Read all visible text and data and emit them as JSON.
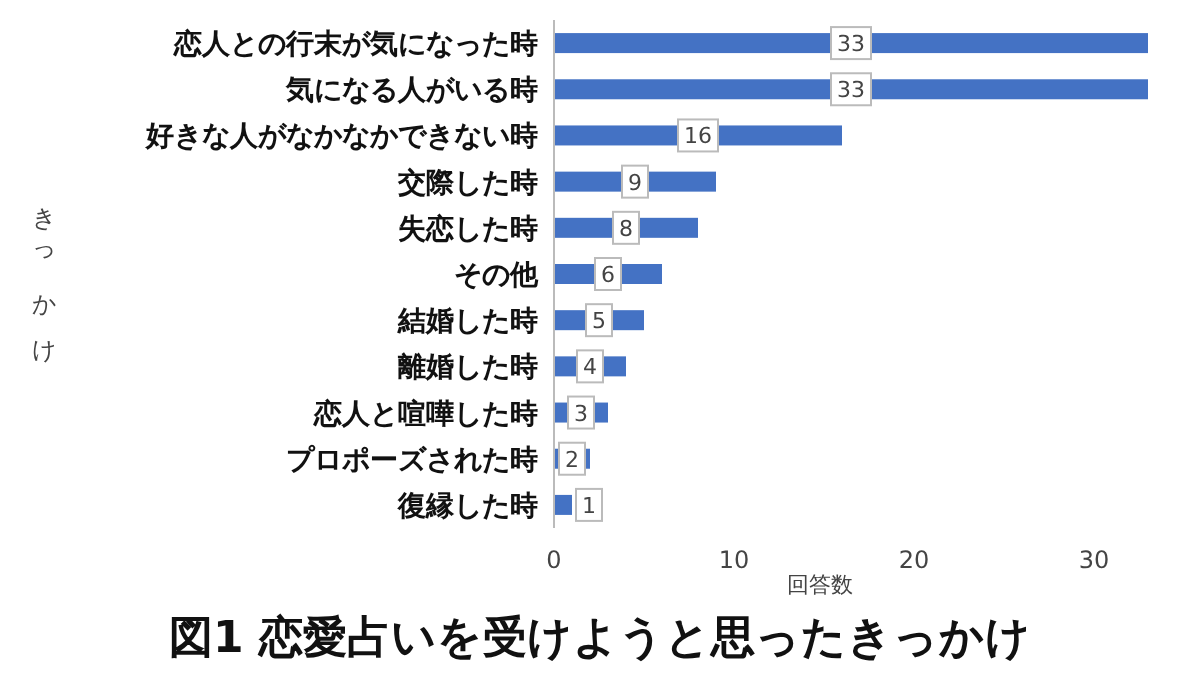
{
  "chart_data": {
    "type": "bar",
    "orientation": "horizontal",
    "title": "図1 恋愛占いを受けようと思ったきっかけ",
    "xlabel": "回答数",
    "ylabel": "きっかけ",
    "categories": [
      "恋人との行末が気になった時",
      "気になる人がいる時",
      "好きな人がなかなかできない時",
      "交際した時",
      "失恋した時",
      "その他",
      "結婚した時",
      "離婚した時",
      "恋人と喧嘩した時",
      "プロポーズされた時",
      "復縁した時"
    ],
    "values": [
      33,
      33,
      16,
      9,
      8,
      6,
      5,
      4,
      3,
      2,
      1
    ],
    "color": "#4472c4",
    "xlim": [
      0,
      33
    ],
    "xticks": [
      0,
      10,
      20,
      30
    ],
    "data_labels": true,
    "grid": false
  }
}
